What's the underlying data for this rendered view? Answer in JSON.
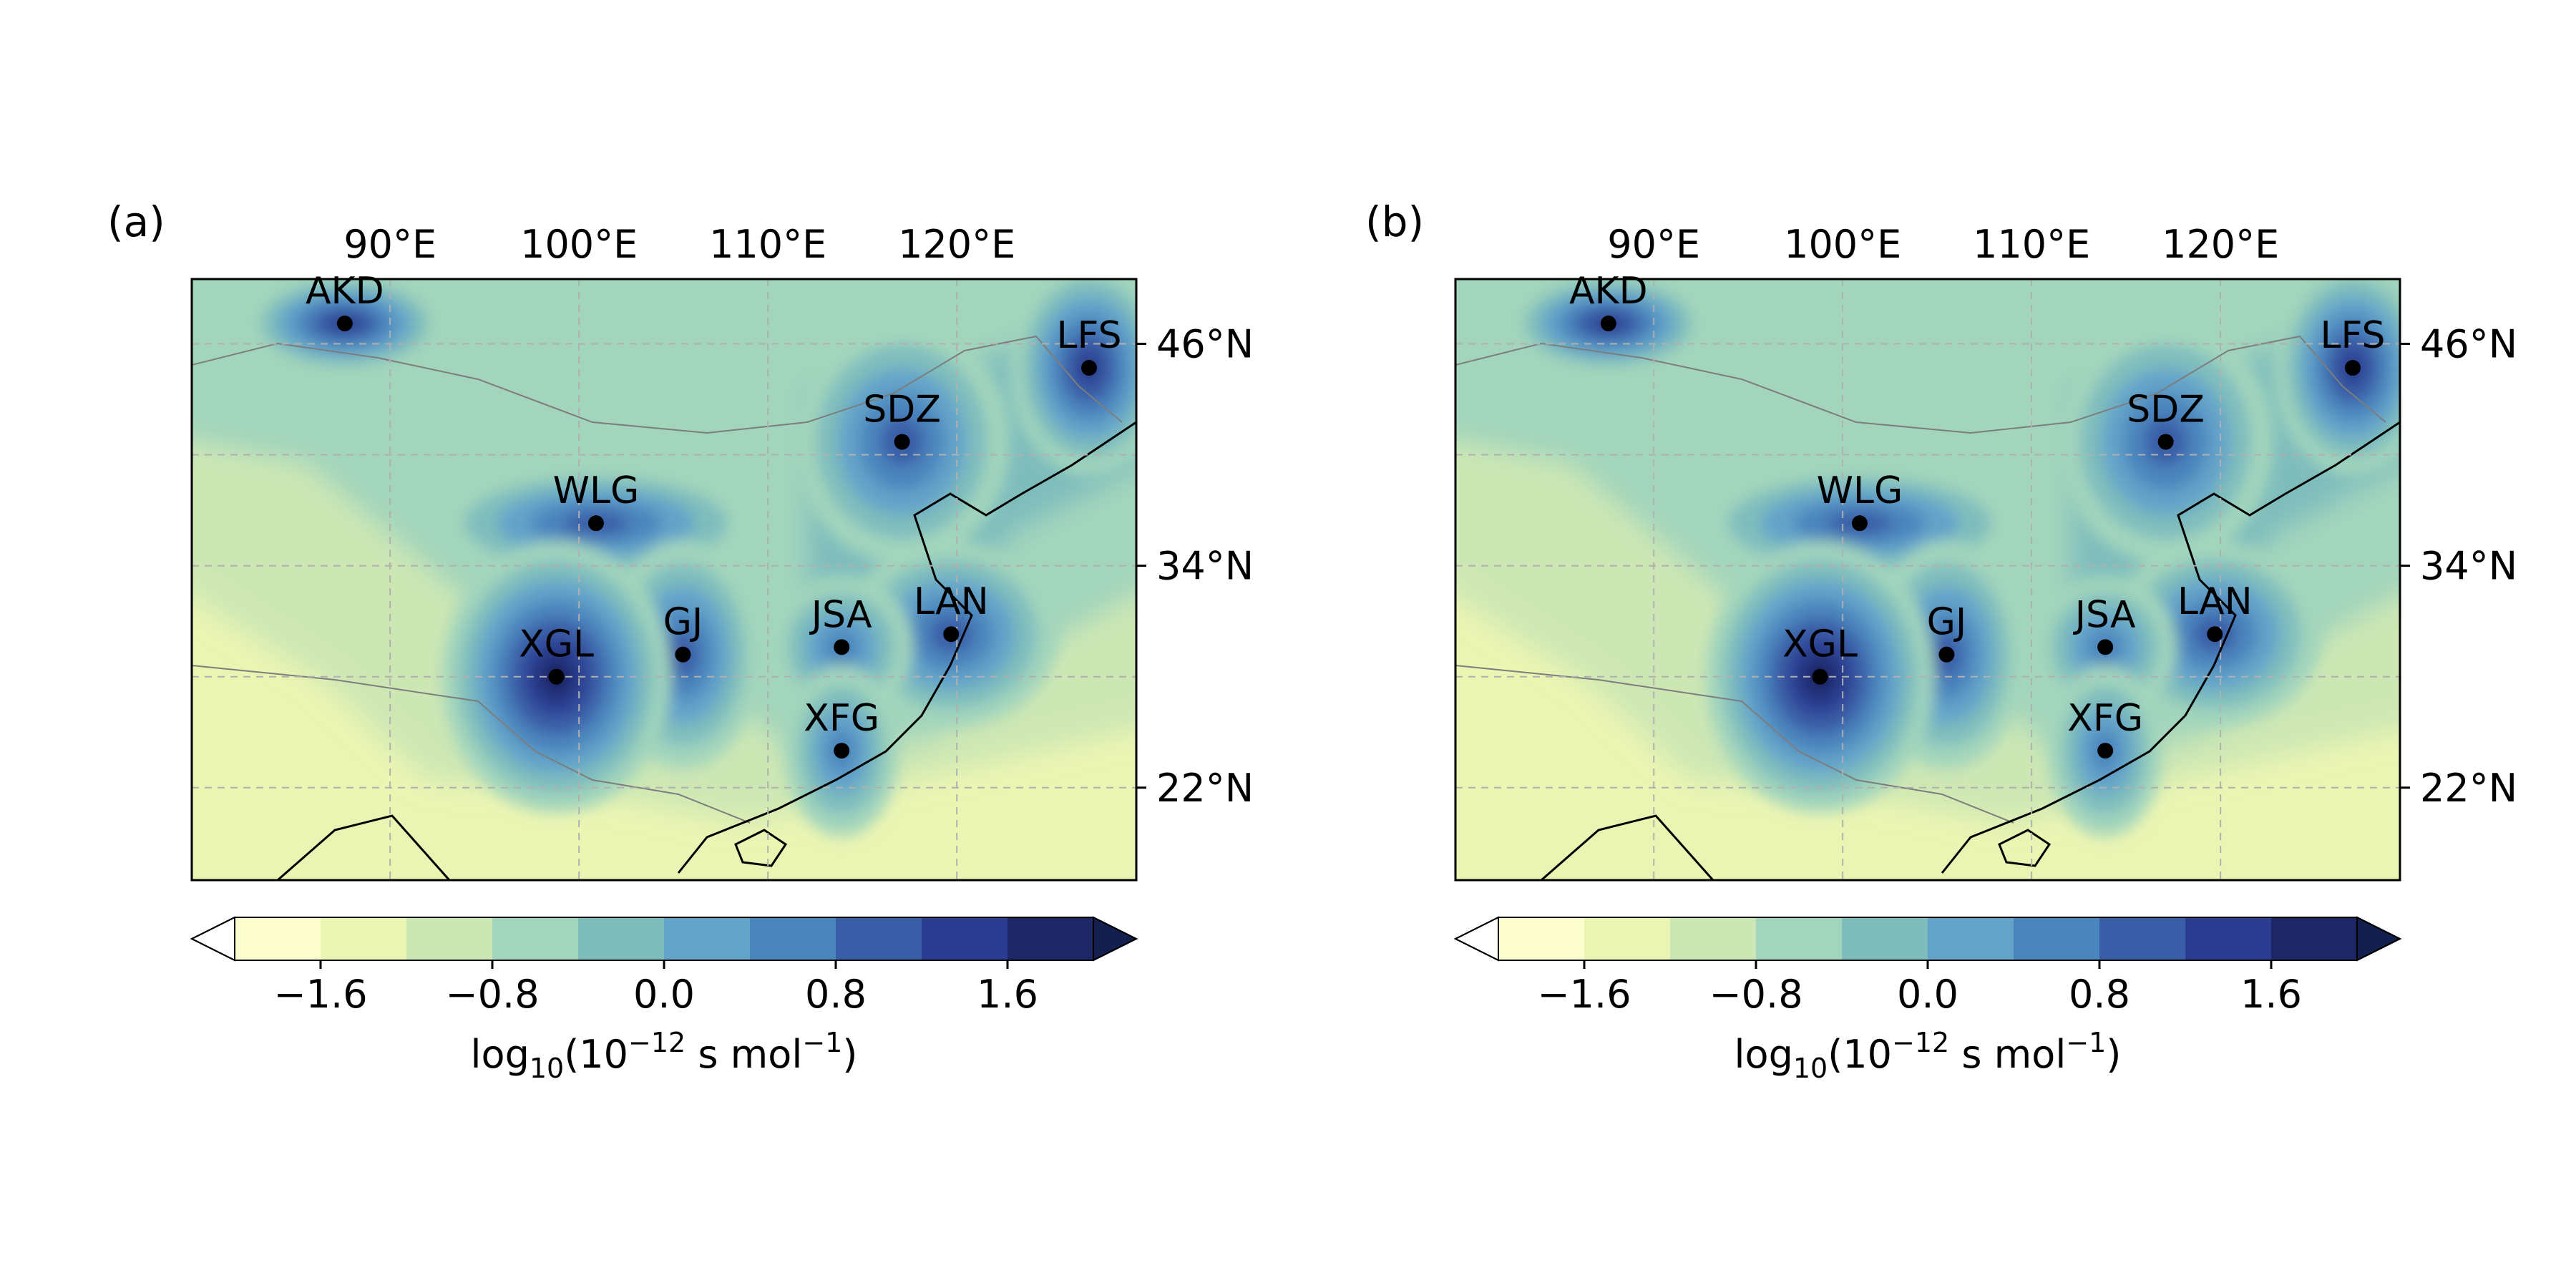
{
  "panels": [
    {
      "label": "(a)"
    },
    {
      "label": "(b)"
    }
  ],
  "map": {
    "lon_range": [
      79.5,
      129.5
    ],
    "lat_range": [
      17,
      49.5
    ],
    "lon_ticks": [
      {
        "value": 90,
        "label": "90°E"
      },
      {
        "value": 100,
        "label": "100°E"
      },
      {
        "value": 110,
        "label": "110°E"
      },
      {
        "value": 120,
        "label": "120°E"
      }
    ],
    "lat_ticks": [
      {
        "value": 46,
        "label": "46°N"
      },
      {
        "value": 34,
        "label": "34°N"
      },
      {
        "value": 22,
        "label": "22°N"
      }
    ],
    "extra_grid_lats": [
      40,
      28
    ],
    "stations": [
      {
        "code": "AKD",
        "lon": 87.6,
        "lat": 47.1
      },
      {
        "code": "LFS",
        "lon": 127.0,
        "lat": 44.7
      },
      {
        "code": "SDZ",
        "lon": 117.1,
        "lat": 40.7
      },
      {
        "code": "WLG",
        "lon": 100.9,
        "lat": 36.3
      },
      {
        "code": "LAN",
        "lon": 119.7,
        "lat": 30.3
      },
      {
        "code": "JSA",
        "lon": 113.9,
        "lat": 29.6
      },
      {
        "code": "GJ",
        "lon": 105.5,
        "lat": 29.2
      },
      {
        "code": "XGL",
        "lon": 98.8,
        "lat": 28.0
      },
      {
        "code": "XFG",
        "lon": 113.9,
        "lat": 24.0
      }
    ]
  },
  "colorbar": {
    "levels": [
      -2.0,
      -1.6,
      -1.2,
      -0.8,
      -0.4,
      0.0,
      0.4,
      0.8,
      1.2,
      1.6,
      2.0
    ],
    "tick_values": [
      -1.6,
      -0.8,
      0.0,
      0.8,
      1.6
    ],
    "tick_labels": [
      "−1.6",
      "−0.8",
      "0.0",
      "0.8",
      "1.6"
    ],
    "colors": [
      "#fcfed0",
      "#ebf5b3",
      "#cde7b4",
      "#a3d5bc",
      "#7fbdbd",
      "#63a3c9",
      "#4b85bd",
      "#3a5da7",
      "#2b3d90",
      "#1e2766"
    ],
    "under_color": "#ffffff",
    "over_color": "#131f4f",
    "label_prefix": "log",
    "label_sub": "10",
    "label_mid": "(10",
    "label_sup": "−12",
    "label_mid2": " s mol",
    "label_sup2": "−1",
    "label_end": ")"
  }
}
